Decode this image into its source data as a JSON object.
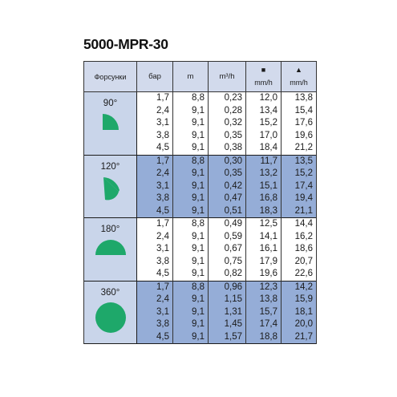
{
  "title": "5000-MPR-30",
  "headers": {
    "nozzle": "Форсунки",
    "pressure": "бар",
    "radius": "m",
    "flow": "m³/h",
    "square_symbol": "■",
    "square_unit": "mm/h",
    "triangle_symbol": "▲",
    "triangle_unit": "mm/h"
  },
  "colors": {
    "row_band_dark": "#95add7",
    "row_band_light": "#ffffff",
    "nozzle_cell": "#c9d5ea",
    "header_bg": "#d2daec",
    "shape_green": "#1ea86a"
  },
  "groups": [
    {
      "angle": "90°",
      "shape_icon": "quarter-circle-icon",
      "rows": [
        [
          "1,7",
          "8,8",
          "0,23",
          "12,0",
          "13,8"
        ],
        [
          "2,4",
          "9,1",
          "0,28",
          "13,4",
          "15,4"
        ],
        [
          "3,1",
          "9,1",
          "0,32",
          "15,2",
          "17,6"
        ],
        [
          "3,8",
          "9,1",
          "0,35",
          "17,0",
          "19,6"
        ],
        [
          "4,5",
          "9,1",
          "0,38",
          "18,4",
          "21,2"
        ]
      ]
    },
    {
      "angle": "120°",
      "shape_icon": "third-circle-icon",
      "rows": [
        [
          "1,7",
          "8,8",
          "0,30",
          "11,7",
          "13,5"
        ],
        [
          "2,4",
          "9,1",
          "0,35",
          "13,2",
          "15,2"
        ],
        [
          "3,1",
          "9,1",
          "0,42",
          "15,1",
          "17,4"
        ],
        [
          "3,8",
          "9,1",
          "0,47",
          "16,8",
          "19,4"
        ],
        [
          "4,5",
          "9,1",
          "0,51",
          "18,3",
          "21,1"
        ]
      ]
    },
    {
      "angle": "180°",
      "shape_icon": "half-circle-icon",
      "rows": [
        [
          "1,7",
          "8,8",
          "0,49",
          "12,5",
          "14,4"
        ],
        [
          "2,4",
          "9,1",
          "0,59",
          "14,1",
          "16,2"
        ],
        [
          "3,1",
          "9,1",
          "0,67",
          "16,1",
          "18,6"
        ],
        [
          "3,8",
          "9,1",
          "0,75",
          "17,9",
          "20,7"
        ],
        [
          "4,5",
          "9,1",
          "0,82",
          "19,6",
          "22,6"
        ]
      ]
    },
    {
      "angle": "360°",
      "shape_icon": "full-circle-icon",
      "rows": [
        [
          "1,7",
          "8,8",
          "0,96",
          "12,3",
          "14,2"
        ],
        [
          "2,4",
          "9,1",
          "1,15",
          "13,8",
          "15,9"
        ],
        [
          "3,1",
          "9,1",
          "1,31",
          "15,7",
          "18,1"
        ],
        [
          "3,8",
          "9,1",
          "1,45",
          "17,4",
          "20,0"
        ],
        [
          "4,5",
          "9,1",
          "1,57",
          "18,8",
          "21,7"
        ]
      ]
    }
  ]
}
